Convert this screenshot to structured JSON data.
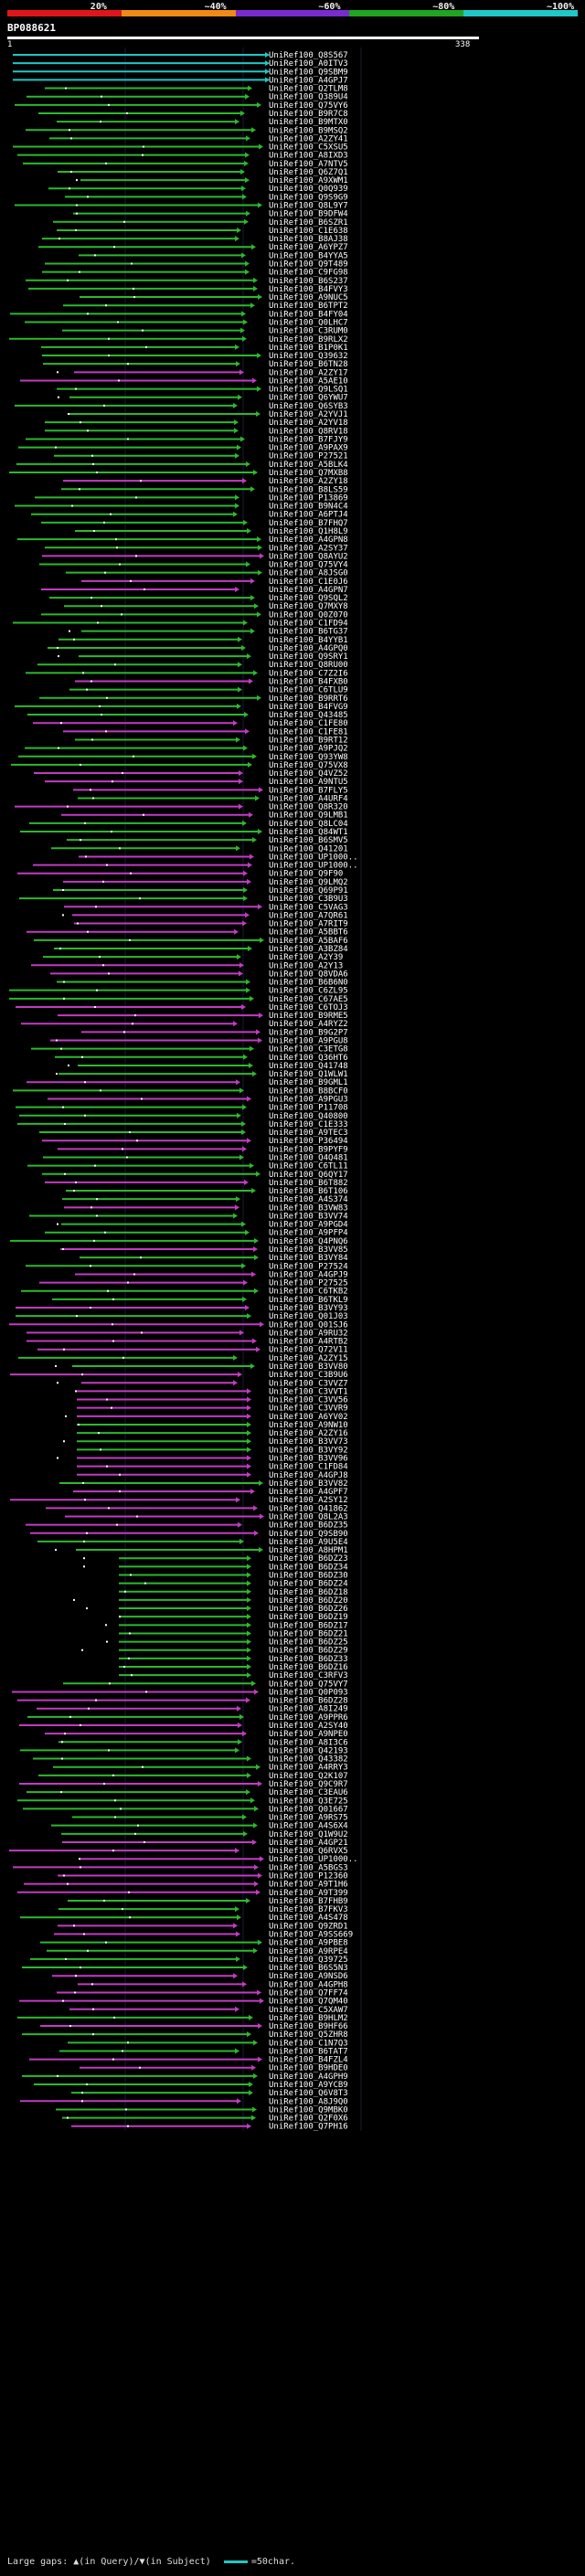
{
  "legend": {
    "labels": [
      "20%",
      "~40%",
      "~60%",
      "~80%",
      "~100%"
    ],
    "colors": [
      "#e0151a",
      "#f08a14",
      "#7a2bd0",
      "#1fa51f",
      "#1ec8c8"
    ]
  },
  "query": {
    "id": "BP088621",
    "start": "1",
    "end": "338"
  },
  "colors": {
    "cyan": "#1ec8c8",
    "green": "#2db82d",
    "magenta": "#c23bc2"
  },
  "hits": [
    "UniRef100_Q8S567",
    "UniRef100_A0ITV3",
    "UniRef100_Q9SBM9",
    "UniRef100_A4GPJ7",
    "UniRef100_Q2TLM8",
    "UniRef100_Q389U4",
    "UniRef100_Q75VY6",
    "UniRef100_B9R7C8",
    "UniRef100_B9MTX0",
    "UniRef100_B9MSQ2",
    "UniRef100_A2ZY41",
    "UniRef100_C5XSU5",
    "UniRef100_A8IXD3",
    "UniRef100_A7NTV5",
    "UniRef100_Q6Z7Q1",
    "UniRef100_A9XWM1",
    "UniRef100_Q0Q939",
    "UniRef100_Q9S9G9",
    "UniRef100_Q8L9Y7",
    "UniRef100_B9DFW4",
    "UniRef100_B6SZR1",
    "UniRef100_C1E638",
    "UniRef100_B8AJ38",
    "UniRef100_A6YPZ7",
    "UniRef100_B4YYA5",
    "UniRef100_Q9T489",
    "UniRef100_C9FG98",
    "UniRef100_B6S237",
    "UniRef100_B4FVY3",
    "UniRef100_A9NUC5",
    "UniRef100_B6TPT2",
    "UniRef100_B4FY04",
    "UniRef100_Q0LHC7",
    "UniRef100_C3RUM0",
    "UniRef100_B9RLX2",
    "UniRef100_B1P0K1",
    "UniRef100_Q39632",
    "UniRef100_B6TN28",
    "UniRef100_A2ZY17",
    "UniRef100_A5AE10",
    "UniRef100_Q9LSQ1",
    "UniRef100_Q6YWU7",
    "UniRef100_Q6SYB3",
    "UniRef100_A2YVJ1",
    "UniRef100_A2YV18",
    "UniRef100_Q8RV18",
    "UniRef100_B7FJY9",
    "UniRef100_A9PAX9",
    "UniRef100_P27521",
    "UniRef100_A5BLK4",
    "UniRef100_Q7MXB8",
    "UniRef100_A2ZY18",
    "UniRef100_B8LS59",
    "UniRef100_P13869",
    "UniRef100_B9N4C4",
    "UniRef100_A6PTJ4",
    "UniRef100_B7FHQ7",
    "UniRef100_Q1H8L9",
    "UniRef100_A4GPN8",
    "UniRef100_A2SY37",
    "UniRef100_Q8AYU2",
    "UniRef100_Q75VY4",
    "UniRef100_A8JSG0",
    "UniRef100_C1E0J6",
    "UniRef100_A4GPN7",
    "UniRef100_Q9SQL2",
    "UniRef100_Q7MXY8",
    "UniRef100_Q0Z070",
    "UniRef100_C1FD94",
    "UniRef100_B6TG37",
    "UniRef100_B4YYB1",
    "UniRef100_A4GPQ0",
    "UniRef100_Q9SRY1",
    "UniRef100_Q8RU00",
    "UniRef100_C7Z2I6",
    "UniRef100_B4FXB0",
    "UniRef100_C6TLU9",
    "UniRef100_B9RRT6",
    "UniRef100_B4FVG9",
    "UniRef100_Q43485",
    "UniRef100_C1FE80",
    "UniRef100_C1FE81",
    "UniRef100_B9RT12",
    "UniRef100_A9PJQ2",
    "UniRef100_Q93YW8",
    "UniRef100_Q75VX8",
    "UniRef100_Q4VZ52",
    "UniRef100_A9NTU5",
    "UniRef100_B7FLY5",
    "UniRef100_A4URF4",
    "UniRef100_Q8R320",
    "UniRef100_Q9LMB1",
    "UniRef100_Q8LC04",
    "UniRef100_Q84WT1",
    "UniRef100_B6SMV5",
    "UniRef100_Q41201",
    "UniRef100_UP1000..",
    "UniRef100_UP1000..",
    "UniRef100_Q9F90",
    "UniRef100_Q9LMQ2",
    "UniRef100_Q69P91",
    "UniRef100_C3B9U3",
    "UniRef100_C5VAG3",
    "UniRef100_A7QR61",
    "UniRef100_A7RIT9",
    "UniRef100_A5BBT6",
    "UniRef100_A5BAF6",
    "UniRef100_A3BZ84",
    "UniRef100_A2Y39",
    "UniRef100_A2Y13",
    "UniRef100_Q8VDA6",
    "UniRef100_B6B6N0",
    "UniRef100_C6ZL95",
    "UniRef100_C67AE5",
    "UniRef100_C6TOJ3",
    "UniRef100_B9RME5",
    "UniRef100_A4RYZ2",
    "UniRef100_B9G2P7",
    "UniRef100_A9PGU8",
    "UniRef100_C3ETG8",
    "UniRef100_Q36HT6",
    "UniRef100_Q41748",
    "UniRef100_Q1WLW1",
    "UniRef100_B9GML1",
    "UniRef100_B8BCF0",
    "UniRef100_A9PGU3",
    "UniRef100_P11708",
    "UniRef100_Q40800",
    "UniRef100_C1E333",
    "UniRef100_A9TEC3",
    "UniRef100_P36494",
    "UniRef100_B9PYF9",
    "UniRef100_Q4Q481",
    "UniRef100_C6TL11",
    "UniRef100_Q6QY17",
    "UniRef100_B6T882",
    "UniRef100_B6T106",
    "UniRef100_A4S374",
    "UniRef100_B3VW83",
    "UniRef100_B3VV74",
    "UniRef100_A9PGD4",
    "UniRef100_A9PFP4",
    "UniRef100_Q4PNQ6",
    "UniRef100_B3VV85",
    "UniRef100_B3VY84",
    "UniRef100_P27524",
    "UniRef100_A4GPJ9",
    "UniRef100_P27525",
    "UniRef100_C6TKB2",
    "UniRef100_B6TKL9",
    "UniRef100_B3VY93",
    "UniRef100_Q01J03",
    "UniRef100_Q01SJ6",
    "UniRef100_A9RU32",
    "UniRef100_A4RTB2",
    "UniRef100_Q72V11",
    "UniRef100_A2ZY15",
    "UniRef100_B3VV80",
    "UniRef100_C3B9U6",
    "UniRef100_C3VVZ7",
    "UniRef100_C3VVT1",
    "UniRef100_C3VV56",
    "UniRef100_C3VVR9",
    "UniRef100_A6YV02",
    "UniRef100_A9NW10",
    "UniRef100_A2ZY16",
    "UniRef100_B3VV73",
    "UniRef100_B3VY92",
    "UniRef100_B3VV96",
    "UniRef100_C1FD84",
    "UniRef100_A4GPJ8",
    "UniRef100_B3VV82",
    "UniRef100_A4GPF7",
    "UniRef100_A2SY12",
    "UniRef100_Q41862",
    "UniRef100_Q8L2A3",
    "UniRef100_B6DZ35",
    "UniRef100_Q9SB90",
    "UniRef100_A9U5E4",
    "UniRef100_A8HPM1",
    "UniRef100_B6DZ23",
    "UniRef100_B6DZ34",
    "UniRef100_B6DZ30",
    "UniRef100_B6DZ24",
    "UniRef100_B6DZ18",
    "UniRef100_B6DZ20",
    "UniRef100_B6DZ26",
    "UniRef100_B6DZ19",
    "UniRef100_B6DZ17",
    "UniRef100_B6DZ21",
    "UniRef100_B6DZ25",
    "UniRef100_B6DZ29",
    "UniRef100_B6DZ33",
    "UniRef100_B6DZ16",
    "UniRef100_C3RFV3",
    "UniRef100_Q75VY7",
    "UniRef100_Q0P093",
    "UniRef100_B6DZ28",
    "UniRef100_A8I249",
    "UniRef100_A9PPR6",
    "UniRef100_A2SY40",
    "UniRef100_A9NPE0",
    "UniRef100_A8I3C6",
    "UniRef100_Q42193",
    "UniRef100_Q43382",
    "UniRef100_A4RRY3",
    "UniRef100_Q2K107",
    "UniRef100_Q9C9R7",
    "UniRef100_C3EAU6",
    "UniRef100_Q3E725",
    "UniRef100_Q01667",
    "UniRef100_A9RS75",
    "UniRef100_A4S6X4",
    "UniRef100_Q1W9U2",
    "UniRef100_A4GP21",
    "UniRef100_Q6RVX5",
    "UniRef100_UP1000..",
    "UniRef100_A5BGS3",
    "UniRef100_P12360",
    "UniRef100_A9T1H6",
    "UniRef100_A9T399",
    "UniRef100_B7FHB9",
    "UniRef100_B7FKV3",
    "UniRef100_A4S478",
    "UniRef100_Q9ZRD1",
    "UniRef100_A9SS669",
    "UniRef100_A9PBE8",
    "UniRef100_A9RPE4",
    "UniRef100_Q39725",
    "UniRef100_B6S5N3",
    "UniRef100_A9NSD6",
    "UniRef100_A4GPH8",
    "UniRef100_Q7FF74",
    "UniRef100_Q7QM40",
    "UniRef100_C5XAW7",
    "UniRef100_B9HLM2",
    "UniRef100_B9HF66",
    "UniRef100_Q5ZHR8",
    "UniRef100_C1N7Q3",
    "UniRef100_B6TAT7",
    "UniRef100_B4FZL4",
    "UniRef100_B9HDE0",
    "UniRef100_A4GPH9",
    "UniRef100_A9YCB9",
    "UniRef100_Q6V8T3",
    "UniRef100_A8J9Q0",
    "UniRef100_Q9MBK0",
    "UniRef100_Q2F0X6",
    "UniRef100_Q7PH16"
  ],
  "footer": {
    "large_gaps": "Large gaps:",
    "in_query": "(in Query)/",
    "in_subject": "(in Subject)",
    "scale_label": "=50char."
  }
}
